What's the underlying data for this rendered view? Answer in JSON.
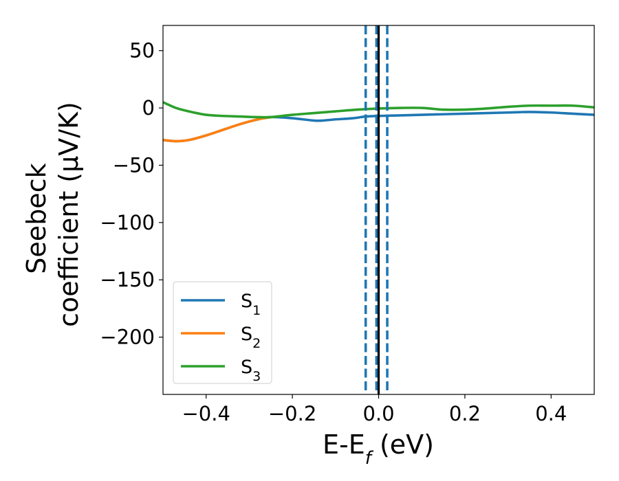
{
  "chart_data": {
    "type": "line",
    "title": "",
    "xlabel": {
      "base": "E-E",
      "sub": "f",
      "suffix": " (eV)"
    },
    "ylabel": {
      "line1": "Seebeck",
      "line2": "coefficient  (μV/K)"
    },
    "xlim": [
      -0.5,
      0.5
    ],
    "ylim": [
      -250,
      72
    ],
    "xticks": [
      -0.4,
      -0.2,
      0.0,
      0.2,
      0.4
    ],
    "xtick_labels": [
      "−0.4",
      "−0.2",
      "0.0",
      "0.2",
      "0.4"
    ],
    "yticks": [
      50,
      0,
      -50,
      -100,
      -150,
      -200
    ],
    "ytick_labels": [
      "50",
      "0",
      "−50",
      "−100",
      "−150",
      "−200"
    ],
    "grid": false,
    "legend_position": "lower-left",
    "series": [
      {
        "name": "S",
        "sub": "1",
        "color": "#1f77b4",
        "x": [
          -0.5,
          -0.47,
          -0.44,
          -0.4,
          -0.36,
          -0.32,
          -0.28,
          -0.25,
          -0.2,
          -0.15,
          -0.13,
          -0.1,
          -0.06,
          -0.03,
          0.0,
          0.05,
          0.1,
          0.2,
          0.3,
          0.35,
          0.4,
          0.45,
          0.5
        ],
        "y": [
          -28,
          -29,
          -28,
          -24,
          -19,
          -14,
          -10,
          -8,
          -9,
          -11,
          -11,
          -10,
          -9,
          -7.5,
          -7,
          -6.5,
          -6,
          -5,
          -4,
          -3.5,
          -4,
          -5,
          -6
        ]
      },
      {
        "name": "S",
        "sub": "2",
        "color": "#ff7f0e",
        "x": [
          -0.5,
          -0.47,
          -0.44,
          -0.4,
          -0.36,
          -0.32,
          -0.28,
          -0.25
        ],
        "y": [
          -28,
          -29,
          -28,
          -24,
          -19,
          -14,
          -10,
          -8
        ]
      },
      {
        "name": "S",
        "sub": "3",
        "color": "#2ca02c",
        "x": [
          -0.5,
          -0.47,
          -0.44,
          -0.4,
          -0.36,
          -0.32,
          -0.28,
          -0.25,
          -0.2,
          -0.15,
          -0.1,
          -0.05,
          0.0,
          0.05,
          0.1,
          0.15,
          0.2,
          0.25,
          0.3,
          0.35,
          0.4,
          0.45,
          0.5
        ],
        "y": [
          5,
          0,
          -3,
          -6,
          -7,
          -7.5,
          -8,
          -8,
          -6,
          -4.5,
          -3,
          -1.5,
          -0.5,
          0,
          0,
          -1.5,
          -1.5,
          -0.5,
          1,
          2,
          2,
          2,
          0.5
        ]
      }
    ],
    "vlines": [
      {
        "x": -0.03,
        "style": "dashed",
        "color": "#1f77b4"
      },
      {
        "x": -0.005,
        "style": "dashed",
        "color": "#1f77b4"
      },
      {
        "x": 0.0,
        "style": "solid",
        "color": "#000000"
      },
      {
        "x": 0.02,
        "style": "dashed",
        "color": "#1f77b4"
      }
    ]
  }
}
